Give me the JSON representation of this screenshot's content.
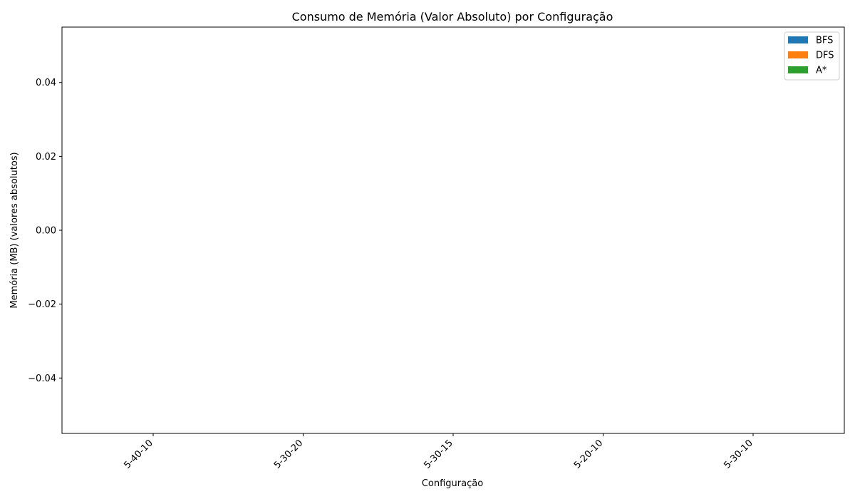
{
  "chart_data": {
    "type": "bar",
    "title": "Consumo de Memória (Valor Absoluto) por Configuração",
    "xlabel": "Configuração",
    "ylabel": "Memória (MB) (valores absolutos)",
    "categories": [
      "5-40-10",
      "5-30-20",
      "5-30-15",
      "5-20-10",
      "5-30-10"
    ],
    "series": [
      {
        "name": "BFS",
        "color": "#1f77b4",
        "values": [
          0,
          0,
          0,
          0,
          0
        ]
      },
      {
        "name": "DFS",
        "color": "#ff7f0e",
        "values": [
          0,
          0,
          0,
          0,
          0
        ]
      },
      {
        "name": "A*",
        "color": "#2ca02c",
        "values": [
          0,
          0,
          0,
          0,
          0
        ]
      }
    ],
    "ylim": [
      -0.055,
      0.055
    ],
    "yticks": [
      -0.04,
      -0.02,
      0.0,
      0.02,
      0.04
    ],
    "ytick_labels": [
      "−0.04",
      "−0.02",
      "0.00",
      "0.02",
      "0.04"
    ],
    "xtick_rotation": 45,
    "grid": false,
    "legend_position": "top-right"
  }
}
